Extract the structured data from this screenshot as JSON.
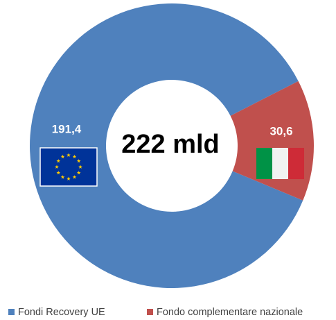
{
  "chart_data": {
    "type": "pie",
    "donut": true,
    "center_label": "222 mld",
    "categories": [
      "Fondi Recovery UE",
      "Fondo complementare nazionale"
    ],
    "values": [
      191.4,
      30.6
    ],
    "value_labels": [
      "191,4",
      "30,6"
    ],
    "colors": [
      "#4f81bd",
      "#c0504d"
    ],
    "legend": "bottom"
  }
}
